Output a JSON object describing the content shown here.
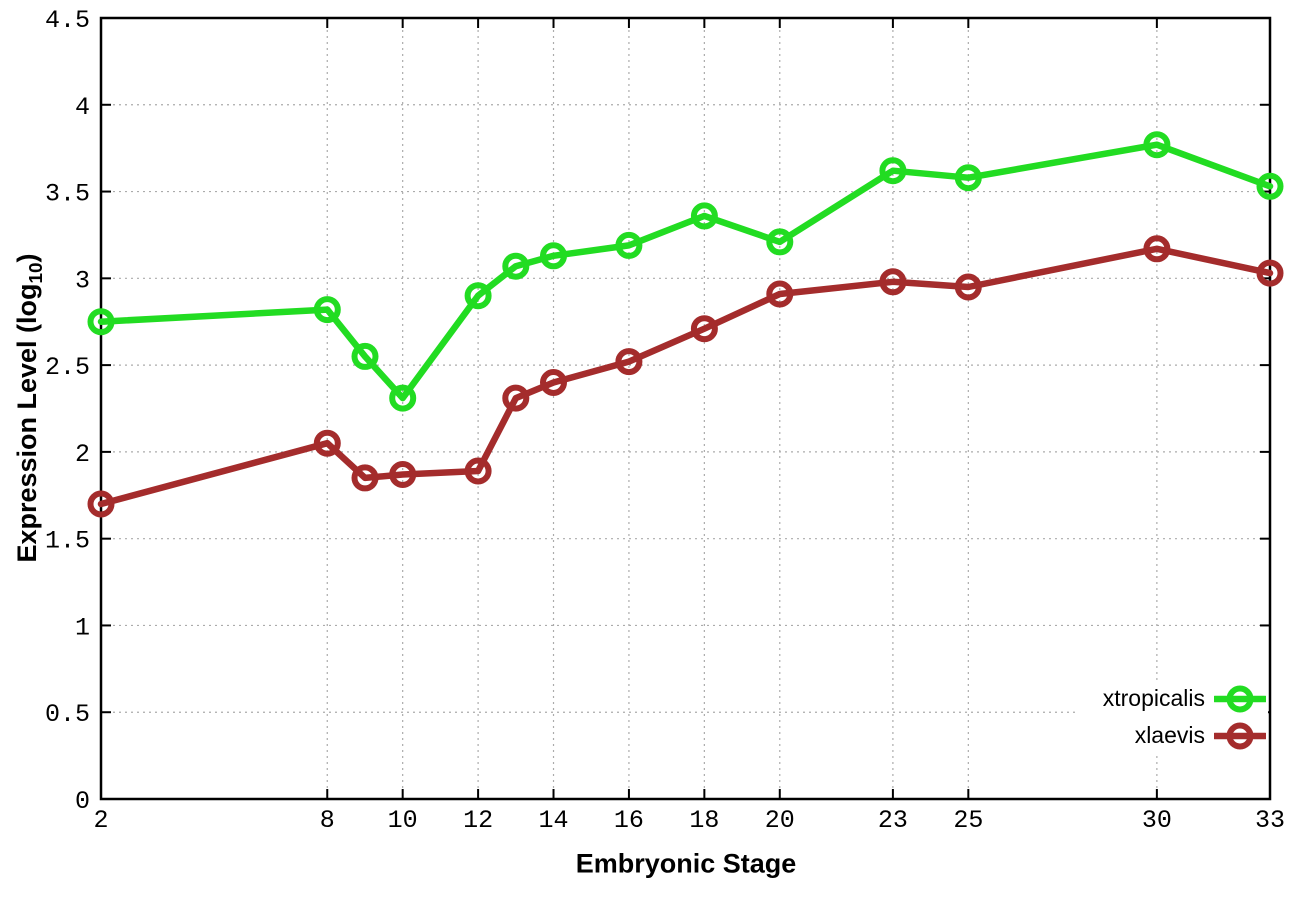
{
  "chart_data": {
    "type": "line",
    "title": "",
    "xlabel": "Embryonic Stage",
    "ylabel_parts": {
      "main": "Expression Level (log",
      "sub": "10",
      "close": ")"
    },
    "x": [
      2,
      8,
      9,
      10,
      12,
      13,
      14,
      16,
      18,
      20,
      23,
      25,
      30,
      33
    ],
    "series": [
      {
        "name": "xtropicalis",
        "color": "#22DC22",
        "values": [
          2.75,
          2.82,
          2.55,
          2.31,
          2.9,
          3.07,
          3.13,
          3.19,
          3.36,
          3.21,
          3.62,
          3.58,
          3.77,
          3.53
        ]
      },
      {
        "name": "xlaevis",
        "color": "#A42C2C",
        "values": [
          1.7,
          2.05,
          1.85,
          1.87,
          1.89,
          2.31,
          2.4,
          2.52,
          2.71,
          2.91,
          2.98,
          2.95,
          3.17,
          3.03
        ]
      }
    ],
    "xticks": [
      2,
      8,
      10,
      12,
      14,
      16,
      18,
      20,
      23,
      25,
      30,
      33
    ],
    "yticks": [
      "0",
      "0.5",
      "1",
      "1.5",
      "2",
      "2.5",
      "3",
      "3.5",
      "4",
      "4.5"
    ],
    "xlim": [
      2,
      33
    ],
    "ylim": [
      0,
      4.5
    ],
    "grid": true,
    "legend_position": "bottom-right",
    "marker": "open-circle"
  }
}
